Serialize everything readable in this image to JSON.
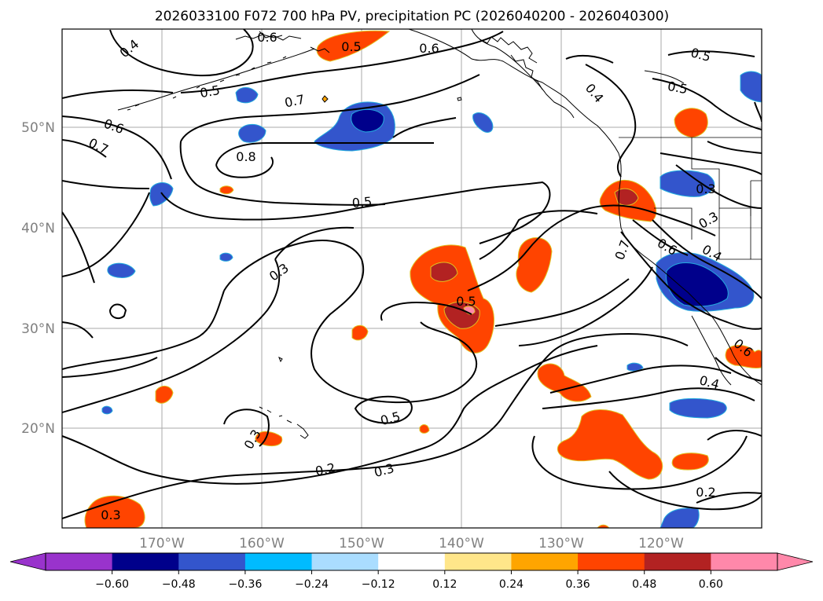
{
  "map": {
    "title": "2026033100 F072 700 hPa PV, precipitation PC (2026040200 - 2026040300)",
    "lat_labels": [
      "50°N",
      "40°N",
      "30°N",
      "20°N"
    ],
    "lon_labels": [
      "170°W",
      "160°W",
      "150°W",
      "140°W",
      "130°W",
      "120°W"
    ],
    "contour_labels": [
      "0.4",
      "0.6",
      "0.5",
      "0.6",
      "0.5",
      "0.7",
      "0.6",
      "0.7",
      "0.8",
      "0.5",
      "0.3",
      "0.5",
      "0.5",
      "0.3",
      "0.2",
      "0.3",
      "0.3",
      "0.2",
      "0.4",
      "0.6",
      "0.7",
      "0.4",
      "0.3",
      "0.5",
      "0.5",
      "0.4",
      "0.6",
      "0.3"
    ],
    "colorbar": {
      "ticks": [
        "−0.60",
        "−0.48",
        "−0.36",
        "−0.24",
        "−0.12",
        "0.12",
        "0.24",
        "0.36",
        "0.48",
        "0.60"
      ],
      "under_color": "#9933cc",
      "over_color": "#ff88aa",
      "colors": [
        "#00008b",
        "#3355cc",
        "#00bbff",
        "#aaddff",
        "#ffffff",
        "#ffe68a",
        "#ffa500",
        "#ff4400",
        "#b22222",
        "#ff88aa"
      ]
    }
  }
}
